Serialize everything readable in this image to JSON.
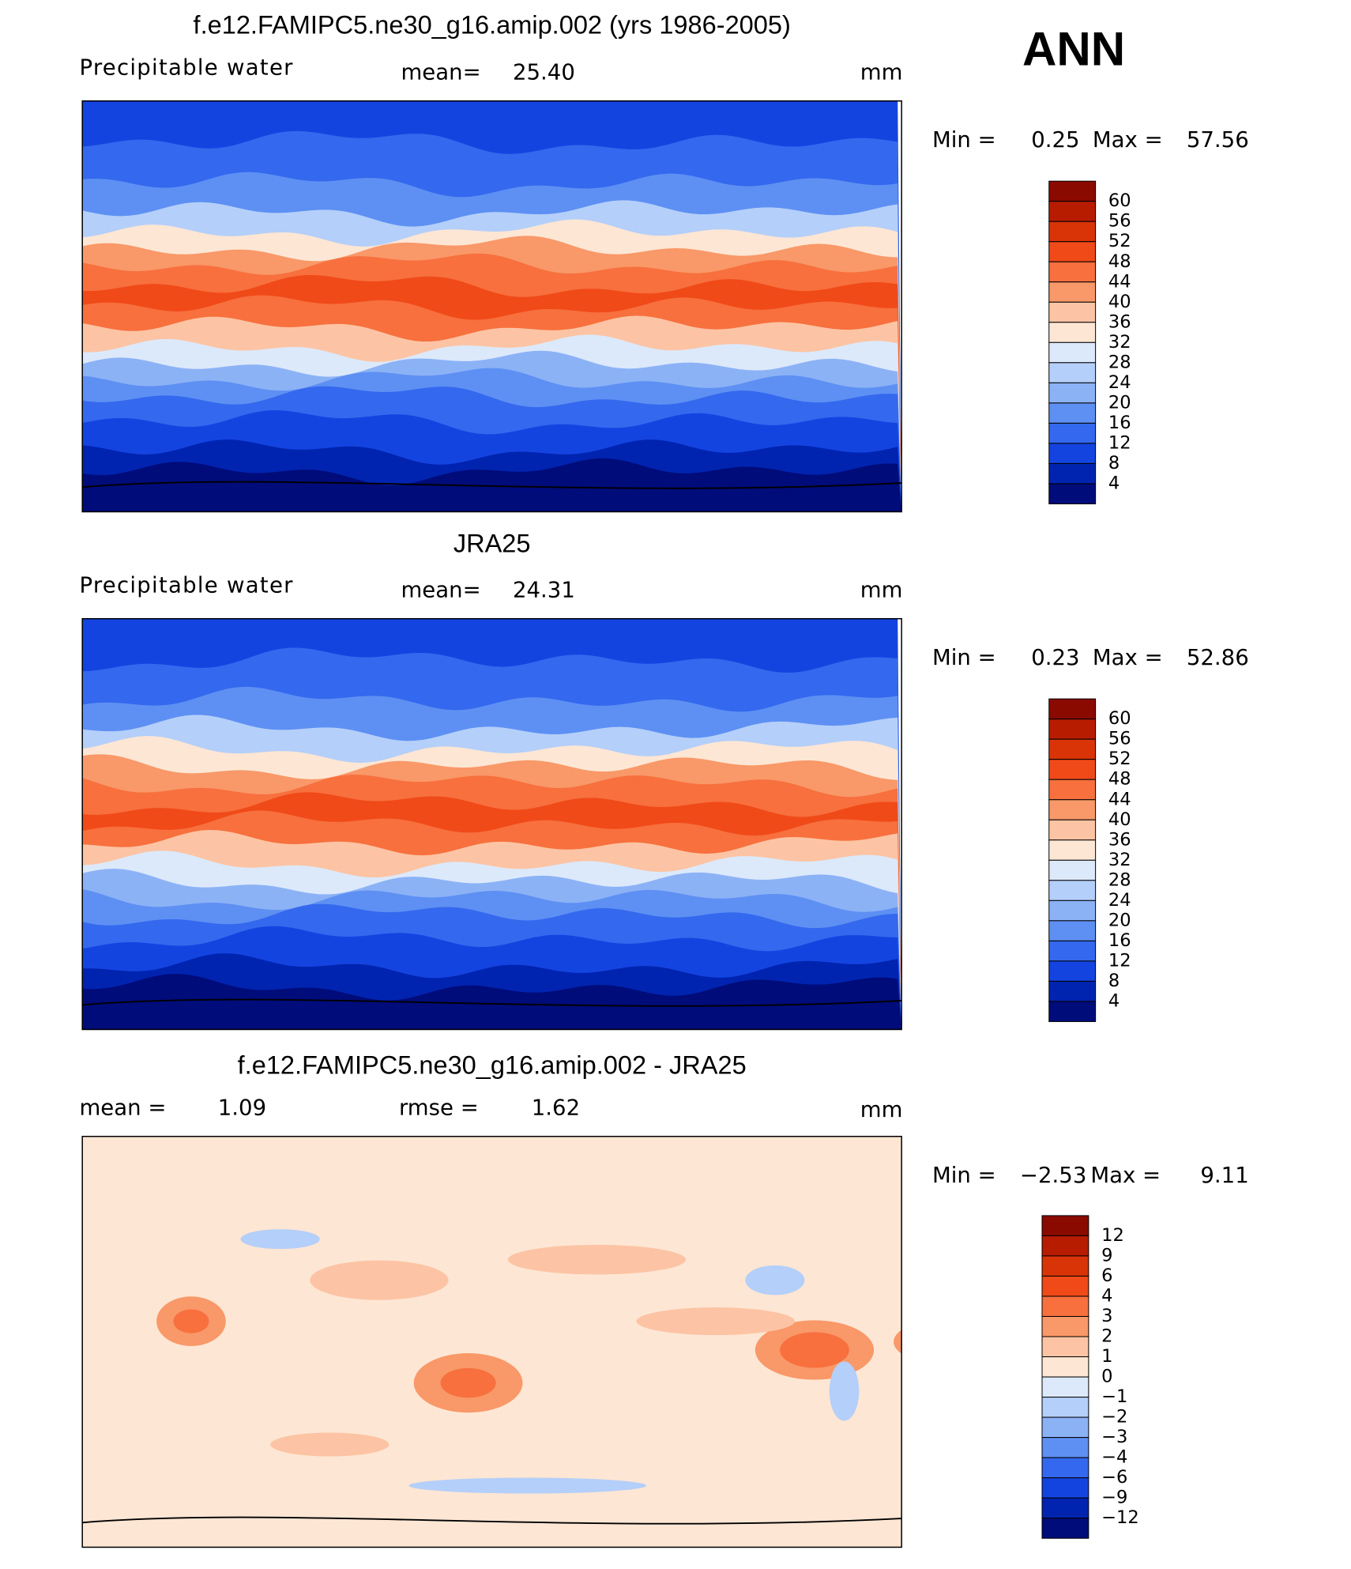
{
  "header": {
    "season": "ANN"
  },
  "panels": [
    {
      "title": "f.e12.FAMIPC5.ne30_g16.amip.002 (yrs 1986-2005)",
      "variable": "Precipitable water",
      "stat1_label": "mean=",
      "stat1_value": "25.40",
      "units": "mm",
      "min_label": "Min =",
      "min": "0.25",
      "max_label": "Max =",
      "max": "57.56",
      "colorbar": {
        "levels": [
          "60",
          "56",
          "52",
          "48",
          "44",
          "40",
          "36",
          "32",
          "28",
          "24",
          "20",
          "16",
          "12",
          "8",
          "4"
        ],
        "colors": [
          "#8b0a00",
          "#b81c00",
          "#d83408",
          "#f04a18",
          "#f7703e",
          "#f99868",
          "#fcc4a4",
          "#fde6d4",
          "#dce9fb",
          "#b4cff9",
          "#8cb2f6",
          "#5e90f3",
          "#3468ee",
          "#1444e0",
          "#0024b0",
          "#000c7a"
        ]
      }
    },
    {
      "title": "JRA25",
      "variable": "Precipitable water",
      "stat1_label": "mean=",
      "stat1_value": "24.31",
      "units": "mm",
      "min_label": "Min =",
      "min": "0.23",
      "max_label": "Max =",
      "max": "52.86",
      "colorbar": {
        "levels": [
          "60",
          "56",
          "52",
          "48",
          "44",
          "40",
          "36",
          "32",
          "28",
          "24",
          "20",
          "16",
          "12",
          "8",
          "4"
        ],
        "colors": [
          "#8b0a00",
          "#b81c00",
          "#d83408",
          "#f04a18",
          "#f7703e",
          "#f99868",
          "#fcc4a4",
          "#fde6d4",
          "#dce9fb",
          "#b4cff9",
          "#8cb2f6",
          "#5e90f3",
          "#3468ee",
          "#1444e0",
          "#0024b0",
          "#000c7a"
        ]
      }
    },
    {
      "title": "f.e12.FAMIPC5.ne30_g16.amip.002 - JRA25",
      "stat1_label": "mean =",
      "stat1_value": "1.09",
      "stat2_label": "rmse =",
      "stat2_value": "1.62",
      "units": "mm",
      "min_label": "Min =",
      "min": "−2.53",
      "max_label": "Max =",
      "max": "9.11",
      "colorbar": {
        "levels": [
          "12",
          "9",
          "6",
          "4",
          "3",
          "2",
          "1",
          "0",
          "−1",
          "−2",
          "−3",
          "−4",
          "−6",
          "−9",
          "−12"
        ],
        "colors": [
          "#8b0a00",
          "#b81c00",
          "#d83408",
          "#f04a18",
          "#f7703e",
          "#f99868",
          "#fcc4a4",
          "#fde6d4",
          "#dce9fb",
          "#b4cff9",
          "#8cb2f6",
          "#5e90f3",
          "#3468ee",
          "#1444e0",
          "#0024b0",
          "#000c7a"
        ]
      }
    }
  ]
}
